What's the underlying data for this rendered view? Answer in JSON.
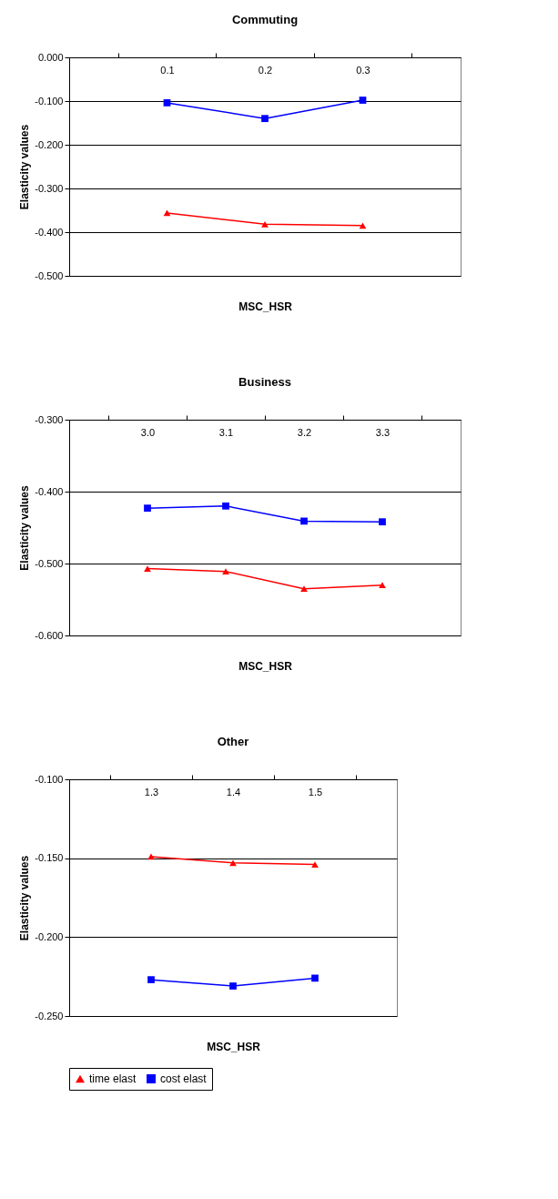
{
  "chart_data": [
    {
      "type": "line",
      "title": "Commuting",
      "xlabel": "MSC_HSR",
      "ylabel": "Elasticity values",
      "categories": [
        "0.1",
        "0.2",
        "0.3"
      ],
      "series": [
        {
          "color": "#ff0000",
          "marker": "triangle",
          "values": [
            -0.356,
            -0.382,
            -0.385
          ]
        },
        {
          "color": "#0000ff",
          "marker": "square",
          "values": [
            -0.104,
            -0.14,
            -0.098
          ]
        }
      ],
      "ylim": [
        -0.5,
        0.0
      ],
      "yticks": [
        {
          "value": 0.0,
          "label": "0.000"
        },
        {
          "value": -0.1,
          "label": "-0.100"
        },
        {
          "value": -0.2,
          "label": "-0.200"
        },
        {
          "value": -0.3,
          "label": "-0.300"
        },
        {
          "value": -0.4,
          "label": "-0.400"
        },
        {
          "value": -0.5,
          "label": "-0.500"
        }
      ],
      "grid": "y",
      "legend": false
    },
    {
      "type": "line",
      "title": "Business",
      "xlabel": "MSC_HSR",
      "ylabel": "Elasticity values",
      "categories": [
        "3.0",
        "3.1",
        "3.2",
        "3.3"
      ],
      "series": [
        {
          "color": "#ff0000",
          "marker": "triangle",
          "values": [
            -0.507,
            -0.511,
            -0.535,
            -0.53
          ]
        },
        {
          "color": "#0000ff",
          "marker": "square",
          "values": [
            -0.423,
            -0.42,
            -0.441,
            -0.442
          ]
        }
      ],
      "ylim": [
        -0.6,
        -0.3
      ],
      "yticks": [
        {
          "value": -0.3,
          "label": "-0.300"
        },
        {
          "value": -0.4,
          "label": "-0.400"
        },
        {
          "value": -0.5,
          "label": "-0.500"
        },
        {
          "value": -0.6,
          "label": "-0.600"
        }
      ],
      "grid": "y",
      "legend": false
    },
    {
      "type": "line",
      "title": "Other",
      "xlabel": "MSC_HSR",
      "ylabel": "Elasticity values",
      "categories": [
        "1.3",
        "1.4",
        "1.5"
      ],
      "series": [
        {
          "name": "time elast",
          "color": "#ff0000",
          "marker": "triangle",
          "values": [
            -0.149,
            -0.153,
            -0.154
          ]
        },
        {
          "name": "cost elast",
          "color": "#0000ff",
          "marker": "square",
          "values": [
            -0.227,
            -0.231,
            -0.226
          ]
        }
      ],
      "ylim": [
        -0.25,
        -0.1
      ],
      "yticks": [
        {
          "value": -0.1,
          "label": "-0.100"
        },
        {
          "value": -0.15,
          "label": "-0.150"
        },
        {
          "value": -0.2,
          "label": "-0.200"
        },
        {
          "value": -0.25,
          "label": "-0.250"
        }
      ],
      "grid": "y",
      "legend": "bottom"
    }
  ]
}
